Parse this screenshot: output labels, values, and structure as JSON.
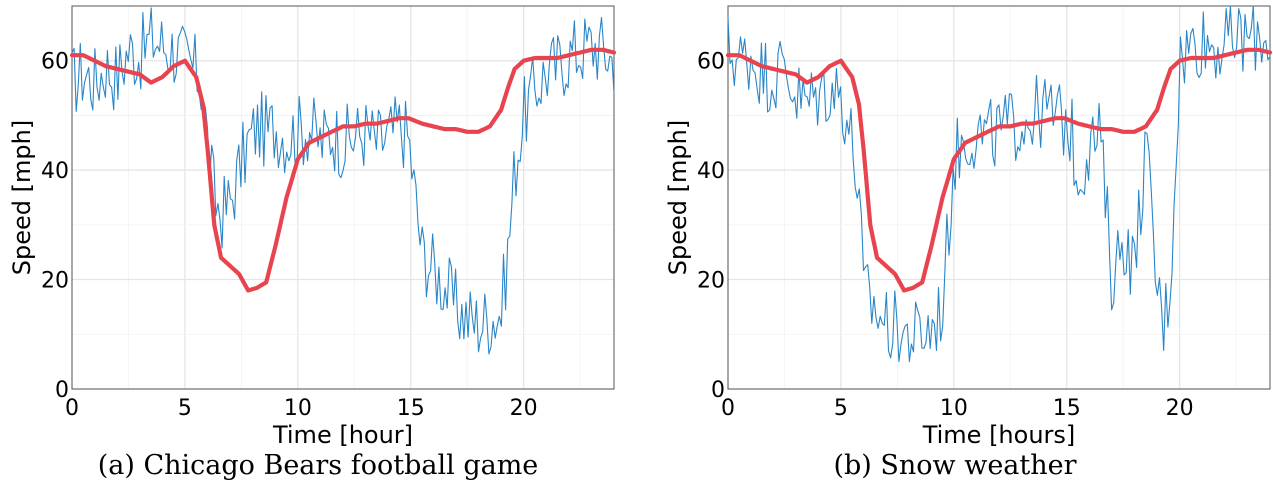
{
  "panels": [
    {
      "caption": "(a) Chicago Bears football game",
      "chart_data": {
        "type": "line",
        "title": "",
        "xlabel": "Time [hour]",
        "ylabel": "Speed [mph]",
        "xlim": [
          0,
          24
        ],
        "ylim": [
          0,
          70
        ],
        "xticks": [
          0,
          5,
          10,
          15,
          20
        ],
        "yticks": [
          0,
          20,
          40,
          60
        ],
        "grid": true,
        "series": [
          {
            "color": "#2a86c8",
            "style": "thin-noisy",
            "x": [
              0,
              0.5,
              1,
              1.5,
              2,
              2.5,
              3,
              3.5,
              4,
              4.5,
              5,
              5.5,
              5.8,
              6,
              6.3,
              6.6,
              7,
              7.4,
              7.8,
              8.2,
              8.6,
              9,
              9.5,
              10,
              10.5,
              11,
              11.5,
              12,
              12.5,
              13,
              13.5,
              14,
              14.5,
              14.9,
              15.2,
              15.5,
              16,
              16.5,
              17,
              17.5,
              18,
              18.5,
              19,
              19.3,
              19.6,
              20,
              20.5,
              21,
              21.5,
              22,
              22.5,
              23,
              23.5,
              24
            ],
            "y": [
              56,
              58,
              56,
              59,
              57,
              62,
              61,
              64,
              63,
              62,
              60,
              58,
              55,
              45,
              35,
              32,
              34,
              40,
              45,
              48,
              47,
              48,
              46,
              47,
              48,
              45,
              47,
              45,
              46,
              47,
              45,
              46,
              48,
              46,
              35,
              25,
              22,
              19,
              15,
              13,
              12,
              13,
              14,
              25,
              40,
              50,
              55,
              58,
              59,
              61,
              62,
              63,
              62,
              60
            ]
          },
          {
            "color": "#e8444f",
            "style": "thick-smooth",
            "x": [
              0,
              0.5,
              1,
              1.5,
              2,
              2.5,
              3,
              3.5,
              4,
              4.5,
              5,
              5.5,
              5.8,
              6,
              6.3,
              6.6,
              7,
              7.4,
              7.8,
              8.2,
              8.6,
              9,
              9.5,
              10,
              10.5,
              11,
              11.5,
              12,
              12.5,
              13,
              13.5,
              14,
              14.5,
              14.9,
              15.2,
              15.5,
              16,
              16.5,
              17,
              17.5,
              18,
              18.5,
              19,
              19.3,
              19.6,
              20,
              20.5,
              21,
              21.5,
              22,
              22.5,
              23,
              23.5,
              24
            ],
            "y": [
              61,
              61,
              60,
              59,
              58.5,
              58,
              57.5,
              56,
              57,
              59,
              60,
              57,
              52,
              44,
              30,
              24,
              22.5,
              21,
              18,
              18.5,
              19.5,
              26,
              35,
              42,
              45,
              46,
              47,
              48,
              48,
              48.5,
              48.5,
              49,
              49.5,
              49.5,
              49,
              48.5,
              48,
              47.5,
              47.5,
              47,
              47,
              48,
              51,
              55,
              58.5,
              60,
              60.5,
              60.5,
              60.5,
              61,
              61.5,
              62,
              62,
              61.5
            ]
          }
        ]
      }
    },
    {
      "caption": "(b) Snow weather",
      "chart_data": {
        "type": "line",
        "title": "",
        "xlabel": "Time [hours]",
        "ylabel": "Speed [mph]",
        "xlim": [
          0,
          24
        ],
        "ylim": [
          0,
          70
        ],
        "xticks": [
          0,
          5,
          10,
          15,
          20
        ],
        "yticks": [
          0,
          20,
          40,
          60
        ],
        "grid": true,
        "series": [
          {
            "color": "#2a86c8",
            "style": "thin-noisy",
            "x": [
              0,
              0.5,
              1,
              1.5,
              2,
              2.5,
              3,
              3.5,
              4,
              4.5,
              5,
              5.5,
              5.8,
              6,
              6.3,
              6.6,
              7,
              7.4,
              7.8,
              8.2,
              8.6,
              9,
              9.5,
              10,
              10.5,
              11,
              11.5,
              12,
              12.5,
              13,
              13.5,
              14,
              14.5,
              14.9,
              15.2,
              15.5,
              16,
              16.5,
              17,
              17.5,
              18,
              18.5,
              19,
              19.3,
              19.6,
              20,
              20.5,
              21,
              21.5,
              22,
              22.5,
              23,
              23.5,
              24
            ],
            "y": [
              62,
              60,
              61,
              58,
              57,
              59,
              54,
              52,
              54,
              55,
              54,
              45,
              35,
              18,
              16,
              14,
              12,
              11,
              10,
              9.5,
              10,
              11,
              15,
              42,
              46,
              47,
              46,
              47,
              48,
              49,
              50,
              51,
              50,
              49,
              47,
              38,
              45,
              46,
              20,
              28,
              22,
              45,
              18,
              12,
              20,
              60,
              63,
              64,
              63,
              63,
              64,
              64,
              65,
              64
            ]
          },
          {
            "color": "#e8444f",
            "style": "thick-smooth",
            "x": [
              0,
              0.5,
              1,
              1.5,
              2,
              2.5,
              3,
              3.5,
              4,
              4.5,
              5,
              5.5,
              5.8,
              6,
              6.3,
              6.6,
              7,
              7.4,
              7.8,
              8.2,
              8.6,
              9,
              9.5,
              10,
              10.5,
              11,
              11.5,
              12,
              12.5,
              13,
              13.5,
              14,
              14.5,
              14.9,
              15.2,
              15.5,
              16,
              16.5,
              17,
              17.5,
              18,
              18.5,
              19,
              19.3,
              19.6,
              20,
              20.5,
              21,
              21.5,
              22,
              22.5,
              23,
              23.5,
              24
            ],
            "y": [
              61,
              61,
              60,
              59,
              58.5,
              58,
              57.5,
              56,
              57,
              59,
              60,
              57,
              52,
              44,
              30,
              24,
              22.5,
              21,
              18,
              18.5,
              19.5,
              26,
              35,
              42,
              45,
              46,
              47,
              48,
              48,
              48.5,
              48.5,
              49,
              49.5,
              49.5,
              49,
              48.5,
              48,
              47.5,
              47.5,
              47,
              47,
              48,
              51,
              55,
              58.5,
              60,
              60.5,
              60.5,
              60.5,
              61,
              61.5,
              62,
              62,
              61.5
            ]
          }
        ]
      }
    }
  ]
}
